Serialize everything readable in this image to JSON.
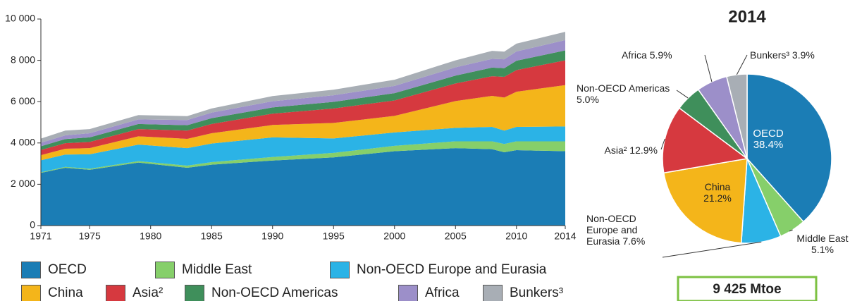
{
  "chart_data": [
    {
      "type": "stacked_area",
      "x": [
        1971,
        1973,
        1975,
        1979,
        1983,
        1985,
        1990,
        1995,
        2000,
        2005,
        2008,
        2009,
        2010,
        2014
      ],
      "xlim": [
        1971,
        2014
      ],
      "xticks": [
        1971,
        1975,
        1980,
        1985,
        1990,
        1995,
        2000,
        2005,
        2010,
        2014
      ],
      "ylim": [
        0,
        10000
      ],
      "yticks": [
        0,
        {
          "value": 2000,
          "label": "2 000"
        },
        {
          "value": 4000,
          "label": "4 000"
        },
        {
          "value": 6000,
          "label": "6 000"
        },
        {
          "value": 8000,
          "label": "8 000"
        },
        {
          "value": 10000,
          "label": "10 000"
        }
      ],
      "series": [
        {
          "name": "OECD",
          "color": "#1b7db5",
          "values": [
            2550,
            2800,
            2700,
            3050,
            2800,
            2950,
            3150,
            3300,
            3600,
            3750,
            3700,
            3550,
            3650,
            3600
          ]
        },
        {
          "name": "Middle East",
          "color": "#86cf6a",
          "values": [
            30,
            40,
            50,
            70,
            100,
            120,
            170,
            220,
            260,
            330,
            380,
            400,
            430,
            480
          ]
        },
        {
          "name": "Non-OECD Europe and Eurasia",
          "color": "#2bb3e6",
          "values": [
            580,
            600,
            700,
            800,
            850,
            900,
            950,
            700,
            650,
            650,
            700,
            650,
            700,
            720
          ]
        },
        {
          "name": "China",
          "color": "#f4b51a",
          "values": [
            250,
            280,
            300,
            400,
            450,
            500,
            600,
            750,
            800,
            1300,
            1500,
            1600,
            1700,
            2000
          ]
        },
        {
          "name": "Asia²",
          "color": "#d6393f",
          "values": [
            250,
            270,
            300,
            350,
            400,
            450,
            550,
            700,
            750,
            850,
            950,
            1000,
            1050,
            1200
          ]
        },
        {
          "name": "Non-OECD Americas",
          "color": "#3f8f5b",
          "values": [
            180,
            200,
            220,
            250,
            260,
            280,
            300,
            320,
            350,
            380,
            420,
            420,
            450,
            480
          ]
        },
        {
          "name": "Africa",
          "color": "#9c8fc9",
          "values": [
            170,
            180,
            200,
            220,
            250,
            270,
            300,
            320,
            350,
            400,
            420,
            430,
            450,
            500
          ]
        },
        {
          "name": "Bunkers³",
          "color": "#a8aeb5",
          "values": [
            200,
            230,
            200,
            210,
            190,
            200,
            250,
            270,
            300,
            340,
            390,
            370,
            380,
            400
          ]
        }
      ]
    },
    {
      "type": "pie",
      "title": "2014",
      "total": "9 425 Mtoe",
      "categories": [
        "OECD",
        "Middle East",
        "Non-OECD Europe and Eurasia",
        "China",
        "Asia²",
        "Non-OECD Americas",
        "Africa",
        "Bunkers³"
      ],
      "values": [
        38.4,
        5.1,
        7.6,
        21.2,
        12.9,
        5.0,
        5.9,
        3.9
      ],
      "value_labels": [
        "38.4%",
        "5.1%",
        "7.6%",
        "21.2%",
        "12.9%",
        "5.0%",
        "5.9%",
        "3.9%"
      ],
      "colors": [
        "#1b7db5",
        "#86cf6a",
        "#2bb3e6",
        "#f4b51a",
        "#d6393f",
        "#3f8f5b",
        "#9c8fc9",
        "#a8aeb5"
      ]
    }
  ]
}
